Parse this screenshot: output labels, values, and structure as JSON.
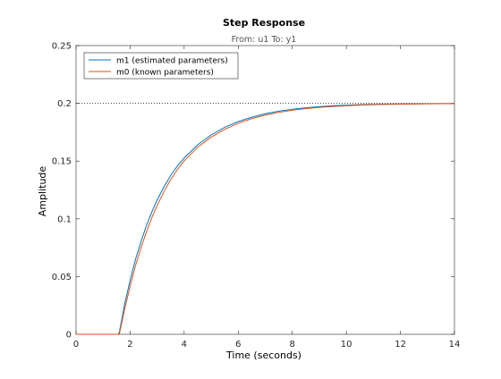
{
  "figure": {
    "title": "Step Response",
    "subtitle": "From: u1  To: y1"
  },
  "chart_data": {
    "type": "line",
    "title": "Step Response",
    "subtitle": "From: u1  To: y1",
    "xlabel": "Time (seconds)",
    "ylabel": "Amplitude",
    "xlim": [
      0,
      14
    ],
    "ylim": [
      0,
      0.25
    ],
    "xticks": [
      0,
      2,
      4,
      6,
      8,
      10,
      12,
      14
    ],
    "yticks": [
      0,
      0.05,
      0.1,
      0.15,
      0.2,
      0.25
    ],
    "xtick_labels": [
      "0",
      "2",
      "4",
      "6",
      "8",
      "10",
      "12",
      "14"
    ],
    "ytick_labels": [
      "0",
      "0.05",
      "0.1",
      "0.15",
      "0.2",
      "0.25"
    ],
    "grid": false,
    "legend": "top-left",
    "steady_state": 0.2,
    "series": [
      {
        "name": "m1 (estimated parameters)",
        "color": "#0072BD",
        "x": [
          0,
          1.55,
          1.6,
          1.8,
          2.0,
          2.2,
          2.4,
          2.6,
          2.8,
          3.0,
          3.25,
          3.5,
          3.75,
          4.0,
          4.5,
          5.0,
          5.5,
          6.0,
          6.5,
          7.0,
          7.5,
          8.0,
          8.5,
          9.0,
          9.5,
          10.0,
          10.5,
          11.0,
          11.5,
          12.0,
          12.5,
          13.0,
          13.5,
          14.0
        ],
        "y": [
          0,
          0,
          0.0015,
          0.0263,
          0.0467,
          0.0649,
          0.0801,
          0.094,
          0.1057,
          0.1163,
          0.1276,
          0.1375,
          0.1458,
          0.1527,
          0.1641,
          0.1727,
          0.1792,
          0.1842,
          0.188,
          0.191,
          0.1932,
          0.1949,
          0.1961,
          0.1971,
          0.1979,
          0.1984,
          0.1988,
          0.1991,
          0.1993,
          0.1995,
          0.1996,
          0.1997,
          0.1998,
          0.1998
        ]
      },
      {
        "name": "m0 (known parameters)",
        "color": "#D95319",
        "x": [
          0,
          1.6,
          1.8,
          2.0,
          2.2,
          2.4,
          2.6,
          2.8,
          3.0,
          3.25,
          3.5,
          3.75,
          4.0,
          4.5,
          5.0,
          5.5,
          6.0,
          6.5,
          7.0,
          7.5,
          8.0,
          8.5,
          9.0,
          9.5,
          10.0,
          10.5,
          11.0,
          11.5,
          12.0,
          12.5,
          13.0,
          13.5,
          14.0
        ],
        "y": [
          0,
          0,
          0.022,
          0.0416,
          0.0595,
          0.0748,
          0.0885,
          0.1008,
          0.1115,
          0.1235,
          0.1338,
          0.1427,
          0.1502,
          0.162,
          0.1708,
          0.1775,
          0.1827,
          0.1867,
          0.1898,
          0.1922,
          0.194,
          0.1954,
          0.1965,
          0.1973,
          0.1979,
          0.1984,
          0.1988,
          0.1991,
          0.1993,
          0.1994,
          0.1996,
          0.1997,
          0.1997
        ]
      }
    ]
  }
}
